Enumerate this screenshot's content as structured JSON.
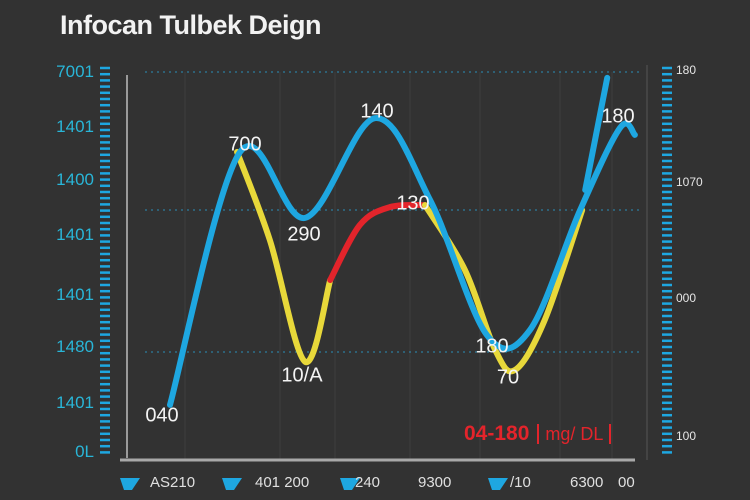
{
  "title": "Infocan Tulbek Deign",
  "chart_data": {
    "type": "line",
    "title": "Infocan Tulbek Deign",
    "xlim": [
      0,
      100
    ],
    "ylim": [
      0,
      100
    ],
    "grid": true,
    "left_tick_labels": [
      "7001",
      "1401",
      "1400",
      "1401",
      "1401",
      "1480",
      "1401",
      "0L"
    ],
    "right_tick_labels": [
      "180",
      "1070",
      "000",
      "100"
    ],
    "x_tick_labels": [
      "AS210",
      "401 200",
      "240",
      "9300",
      "/10",
      "6300",
      "00"
    ],
    "legend_text": "04-180",
    "legend_unit": "mg/ DL",
    "colors": {
      "blue": "#1ea7e1",
      "yellow": "#e8d83a",
      "red": "#e3242b",
      "background": "#323232"
    },
    "series": [
      {
        "color": "blue",
        "points": [
          [
            8.2,
            14.2
          ],
          [
            21.9,
            79.4
          ],
          [
            34.6,
            62.4
          ],
          [
            48.2,
            88.1
          ],
          [
            59.0,
            67.0
          ],
          [
            70.1,
            32.2
          ],
          [
            78.5,
            33.5
          ],
          [
            88.3,
            64.4
          ],
          [
            96.1,
            85.6
          ],
          [
            99.0,
            83.8
          ]
        ]
      },
      {
        "color": "blue",
        "points": [
          [
            89.3,
            69.6
          ],
          [
            93.6,
            98.5
          ]
        ]
      },
      {
        "color": "yellow",
        "points": [
          [
            21.3,
            79.4
          ],
          [
            27.7,
            56.7
          ],
          [
            34.6,
            25.3
          ],
          [
            39.5,
            46.4
          ]
        ]
      },
      {
        "color": "red",
        "points": [
          [
            39.5,
            46.4
          ],
          [
            45.3,
            60.6
          ],
          [
            51.2,
            65.2
          ],
          [
            58.0,
            65.7
          ]
        ]
      },
      {
        "color": "yellow",
        "points": [
          [
            58.0,
            65.7
          ],
          [
            65.8,
            49.0
          ],
          [
            71.7,
            28.4
          ],
          [
            75.6,
            23.2
          ],
          [
            81.4,
            36.1
          ],
          [
            88.7,
            64.4
          ]
        ]
      }
    ],
    "data_labels": [
      "700",
      "290",
      "140",
      "130",
      "10/A",
      "180",
      "180",
      "70",
      "040"
    ]
  }
}
